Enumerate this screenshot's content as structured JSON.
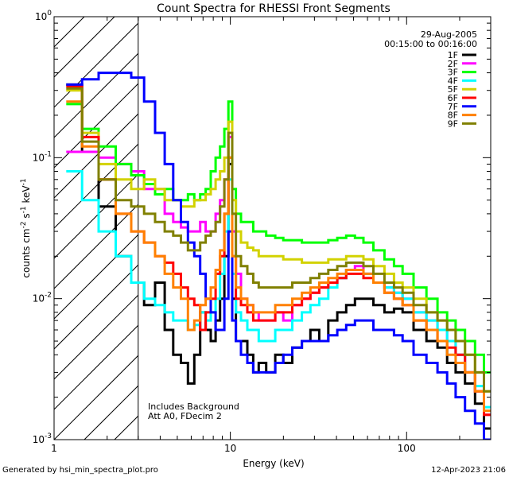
{
  "chart_data": {
    "type": "line",
    "title": "Count Spectra for RHESSI Front Segments",
    "xlabel": "Energy (keV)",
    "ylabel": {
      "base": "counts cm",
      "exp1": "-2",
      "mid1": " s",
      "exp2": "-1",
      "mid2": " keV",
      "exp3": "-1"
    },
    "xscale": "log",
    "yscale": "log",
    "xlim": [
      1,
      300
    ],
    "ylim": [
      0.001,
      1
    ],
    "x_ticks": [
      {
        "v": 1,
        "label": "1"
      },
      {
        "v": 10,
        "label": "10"
      },
      {
        "v": 100,
        "label": "100"
      }
    ],
    "y_ticks": [
      {
        "v": 1,
        "base": "10",
        "exp": "0"
      },
      {
        "v": 0.1,
        "base": "10",
        "exp": "-1"
      },
      {
        "v": 0.01,
        "base": "10",
        "exp": "-2"
      },
      {
        "v": 0.001,
        "base": "10",
        "exp": "-3"
      }
    ],
    "shaded_region": {
      "x_from": 1,
      "x_to": 3,
      "pattern": "diagonal-hatch"
    },
    "annotations": {
      "date": "29-Aug-2005",
      "time_range": "00:15:00 to 00:16:00",
      "background_note": "Includes Background",
      "attenuator_note": "Att A0, FDecim 2"
    },
    "legend_position": "top-right",
    "footer": {
      "left": "Generated by hsi_min_spectra_plot.pro",
      "right": "12-Apr-2023 21:06"
    },
    "series": [
      {
        "name": "1F",
        "color": "#000000",
        "x": [
          1.3,
          1.6,
          2.0,
          2.5,
          3.0,
          3.5,
          4.0,
          4.5,
          5.0,
          5.5,
          6.0,
          6.5,
          7.0,
          7.5,
          8.0,
          8.5,
          9.0,
          9.5,
          10.0,
          10.5,
          11.0,
          12,
          13,
          14,
          15,
          17,
          19,
          21,
          24,
          27,
          30,
          34,
          38,
          43,
          48,
          54,
          60,
          70,
          80,
          90,
          100,
          120,
          140,
          160,
          180,
          200,
          230,
          260,
          290
        ],
        "values": [
          0.33,
          0.11,
          0.045,
          0.02,
          0.013,
          0.009,
          0.013,
          0.006,
          0.004,
          0.0035,
          0.0025,
          0.004,
          0.008,
          0.006,
          0.005,
          0.007,
          0.01,
          0.02,
          0.09,
          0.01,
          0.005,
          0.005,
          0.004,
          0.003,
          0.0035,
          0.003,
          0.004,
          0.0035,
          0.0045,
          0.005,
          0.006,
          0.005,
          0.007,
          0.008,
          0.009,
          0.01,
          0.01,
          0.009,
          0.008,
          0.0085,
          0.008,
          0.006,
          0.005,
          0.0045,
          0.0035,
          0.003,
          0.0025,
          0.0018,
          0.0012
        ]
      },
      {
        "name": "2F",
        "color": "#ff00ff",
        "x": [
          1.3,
          1.6,
          2.0,
          2.5,
          3.0,
          3.5,
          4.0,
          4.5,
          5.0,
          5.5,
          6.0,
          6.5,
          7.0,
          7.5,
          8.0,
          8.5,
          9.0,
          9.5,
          10.0,
          10.5,
          11.0,
          12,
          13,
          14,
          15,
          17,
          19,
          21,
          24,
          27,
          30,
          34,
          38,
          43,
          48,
          54,
          60,
          70,
          80,
          90,
          100,
          120,
          140,
          160,
          180,
          200,
          230,
          260,
          290
        ],
        "values": [
          0.11,
          0.11,
          0.1,
          0.09,
          0.08,
          0.06,
          0.06,
          0.04,
          0.035,
          0.032,
          0.03,
          0.03,
          0.035,
          0.03,
          0.03,
          0.04,
          0.05,
          0.07,
          0.14,
          0.03,
          0.015,
          0.01,
          0.009,
          0.008,
          0.007,
          0.007,
          0.008,
          0.007,
          0.009,
          0.01,
          0.011,
          0.012,
          0.013,
          0.014,
          0.016,
          0.017,
          0.015,
          0.013,
          0.012,
          0.011,
          0.01,
          0.008,
          0.007,
          0.006,
          0.005,
          0.004,
          0.003,
          0.0022,
          0.0015
        ]
      },
      {
        "name": "3F",
        "color": "#00ff00",
        "x": [
          1.3,
          1.6,
          2.0,
          2.5,
          3.0,
          3.5,
          4.0,
          4.5,
          5.0,
          5.5,
          6.0,
          6.5,
          7.0,
          7.5,
          8.0,
          8.5,
          9.0,
          9.5,
          10.0,
          10.5,
          11.0,
          12,
          13,
          14,
          15,
          17,
          19,
          21,
          24,
          27,
          30,
          34,
          38,
          43,
          48,
          54,
          60,
          70,
          80,
          90,
          100,
          120,
          140,
          160,
          180,
          200,
          230,
          260,
          290
        ],
        "values": [
          0.24,
          0.16,
          0.12,
          0.09,
          0.075,
          0.065,
          0.055,
          0.06,
          0.05,
          0.05,
          0.055,
          0.05,
          0.055,
          0.06,
          0.08,
          0.1,
          0.12,
          0.16,
          0.25,
          0.06,
          0.04,
          0.035,
          0.035,
          0.03,
          0.03,
          0.028,
          0.027,
          0.026,
          0.026,
          0.025,
          0.025,
          0.025,
          0.026,
          0.027,
          0.028,
          0.027,
          0.025,
          0.022,
          0.019,
          0.017,
          0.015,
          0.012,
          0.01,
          0.008,
          0.007,
          0.006,
          0.005,
          0.004,
          0.003
        ]
      },
      {
        "name": "4F",
        "color": "#00ffff",
        "x": [
          1.3,
          1.6,
          2.0,
          2.5,
          3.0,
          3.5,
          4.0,
          4.5,
          5.0,
          5.5,
          6.0,
          6.5,
          7.0,
          7.5,
          8.0,
          8.5,
          9.0,
          9.5,
          10.0,
          10.5,
          11.0,
          12,
          13,
          14,
          15,
          17,
          19,
          21,
          24,
          27,
          30,
          34,
          38,
          43,
          48,
          54,
          60,
          70,
          80,
          90,
          100,
          120,
          140,
          160,
          180,
          200,
          230,
          260,
          290
        ],
        "values": [
          0.08,
          0.05,
          0.03,
          0.02,
          0.013,
          0.01,
          0.009,
          0.008,
          0.007,
          0.007,
          0.006,
          0.0065,
          0.008,
          0.007,
          0.008,
          0.01,
          0.015,
          0.03,
          0.07,
          0.015,
          0.008,
          0.007,
          0.006,
          0.006,
          0.005,
          0.005,
          0.006,
          0.006,
          0.007,
          0.008,
          0.009,
          0.01,
          0.012,
          0.014,
          0.016,
          0.016,
          0.015,
          0.013,
          0.012,
          0.011,
          0.01,
          0.008,
          0.007,
          0.006,
          0.005,
          0.004,
          0.003,
          0.0024,
          0.0017
        ]
      },
      {
        "name": "5F",
        "color": "#d2d200",
        "x": [
          1.3,
          1.6,
          2.0,
          2.5,
          3.0,
          3.5,
          4.0,
          4.5,
          5.0,
          5.5,
          6.0,
          6.5,
          7.0,
          7.5,
          8.0,
          8.5,
          9.0,
          9.5,
          10.0,
          10.5,
          11.0,
          12,
          13,
          14,
          15,
          17,
          19,
          21,
          24,
          27,
          30,
          34,
          38,
          43,
          48,
          54,
          60,
          70,
          80,
          90,
          100,
          120,
          140,
          160,
          180,
          200,
          230,
          260,
          290
        ],
        "values": [
          0.3,
          0.15,
          0.09,
          0.07,
          0.06,
          0.07,
          0.06,
          0.05,
          0.05,
          0.045,
          0.045,
          0.05,
          0.05,
          0.055,
          0.06,
          0.07,
          0.08,
          0.1,
          0.18,
          0.05,
          0.03,
          0.025,
          0.023,
          0.022,
          0.02,
          0.02,
          0.02,
          0.019,
          0.019,
          0.018,
          0.018,
          0.018,
          0.019,
          0.019,
          0.02,
          0.02,
          0.019,
          0.017,
          0.015,
          0.013,
          0.012,
          0.01,
          0.008,
          0.007,
          0.006,
          0.005,
          0.004,
          0.003,
          0.0022
        ]
      },
      {
        "name": "6F",
        "color": "#ff0000",
        "x": [
          1.3,
          1.6,
          2.0,
          2.5,
          3.0,
          3.5,
          4.0,
          4.5,
          5.0,
          5.5,
          6.0,
          6.5,
          7.0,
          7.5,
          8.0,
          8.5,
          9.0,
          9.5,
          10.0,
          10.5,
          11.0,
          12,
          13,
          14,
          15,
          17,
          19,
          21,
          24,
          27,
          30,
          34,
          38,
          43,
          48,
          54,
          60,
          70,
          80,
          90,
          100,
          120,
          140,
          160,
          180,
          200,
          230,
          260,
          290
        ],
        "values": [
          0.32,
          0.14,
          0.07,
          0.04,
          0.03,
          0.025,
          0.02,
          0.018,
          0.015,
          0.012,
          0.01,
          0.009,
          0.006,
          0.008,
          0.01,
          0.015,
          0.02,
          0.04,
          0.1,
          0.02,
          0.01,
          0.009,
          0.008,
          0.007,
          0.007,
          0.007,
          0.008,
          0.008,
          0.009,
          0.01,
          0.011,
          0.012,
          0.013,
          0.014,
          0.015,
          0.015,
          0.014,
          0.013,
          0.011,
          0.01,
          0.009,
          0.007,
          0.006,
          0.005,
          0.0045,
          0.004,
          0.003,
          0.0022,
          0.0015
        ]
      },
      {
        "name": "7F",
        "color": "#0000ff",
        "x": [
          1.3,
          1.6,
          2.0,
          2.5,
          3.0,
          3.5,
          4.0,
          4.5,
          5.0,
          5.5,
          6.0,
          6.5,
          7.0,
          7.5,
          8.0,
          8.5,
          9.0,
          9.5,
          10.0,
          10.5,
          11.0,
          12,
          13,
          14,
          15,
          17,
          19,
          21,
          24,
          27,
          30,
          34,
          38,
          43,
          48,
          54,
          60,
          70,
          80,
          90,
          100,
          120,
          140,
          160,
          180,
          200,
          230,
          260,
          290
        ],
        "values": [
          0.33,
          0.36,
          0.4,
          0.4,
          0.37,
          0.25,
          0.15,
          0.09,
          0.05,
          0.035,
          0.025,
          0.02,
          0.015,
          0.01,
          0.008,
          0.006,
          0.006,
          0.01,
          0.03,
          0.007,
          0.005,
          0.004,
          0.0035,
          0.003,
          0.003,
          0.003,
          0.0035,
          0.004,
          0.0045,
          0.005,
          0.005,
          0.005,
          0.0055,
          0.006,
          0.0065,
          0.007,
          0.007,
          0.006,
          0.006,
          0.0055,
          0.005,
          0.004,
          0.0035,
          0.003,
          0.0025,
          0.002,
          0.0016,
          0.0013,
          0.001
        ]
      },
      {
        "name": "8F",
        "color": "#ff8000",
        "x": [
          1.3,
          1.6,
          2.0,
          2.5,
          3.0,
          3.5,
          4.0,
          4.5,
          5.0,
          5.5,
          6.0,
          6.5,
          7.0,
          7.5,
          8.0,
          8.5,
          9.0,
          9.5,
          10.0,
          10.5,
          11.0,
          12,
          13,
          14,
          15,
          17,
          19,
          21,
          24,
          27,
          30,
          34,
          38,
          43,
          48,
          54,
          60,
          70,
          80,
          90,
          100,
          120,
          140,
          160,
          180,
          200,
          230,
          260,
          290
        ],
        "values": [
          0.25,
          0.12,
          0.07,
          0.04,
          0.03,
          0.025,
          0.02,
          0.015,
          0.012,
          0.01,
          0.006,
          0.007,
          0.009,
          0.01,
          0.012,
          0.016,
          0.022,
          0.04,
          0.1,
          0.02,
          0.012,
          0.01,
          0.009,
          0.008,
          0.008,
          0.008,
          0.009,
          0.009,
          0.01,
          0.011,
          0.012,
          0.013,
          0.014,
          0.015,
          0.016,
          0.016,
          0.015,
          0.013,
          0.011,
          0.01,
          0.009,
          0.007,
          0.006,
          0.005,
          0.004,
          0.0035,
          0.003,
          0.0022,
          0.0016
        ]
      },
      {
        "name": "9F",
        "color": "#808000",
        "x": [
          1.3,
          1.6,
          2.0,
          2.5,
          3.0,
          3.5,
          4.0,
          4.5,
          5.0,
          5.5,
          6.0,
          6.5,
          7.0,
          7.5,
          8.0,
          8.5,
          9.0,
          9.5,
          10.0,
          10.5,
          11.0,
          12,
          13,
          14,
          15,
          17,
          19,
          21,
          24,
          27,
          30,
          34,
          38,
          43,
          48,
          54,
          60,
          70,
          80,
          90,
          100,
          120,
          140,
          160,
          180,
          200,
          230,
          260,
          290
        ],
        "values": [
          0.31,
          0.13,
          0.07,
          0.05,
          0.045,
          0.04,
          0.035,
          0.03,
          0.028,
          0.025,
          0.022,
          0.022,
          0.025,
          0.028,
          0.03,
          0.035,
          0.045,
          0.07,
          0.15,
          0.04,
          0.02,
          0.017,
          0.015,
          0.013,
          0.012,
          0.012,
          0.012,
          0.012,
          0.013,
          0.013,
          0.014,
          0.015,
          0.016,
          0.017,
          0.018,
          0.018,
          0.017,
          0.015,
          0.013,
          0.012,
          0.011,
          0.009,
          0.008,
          0.007,
          0.006,
          0.005,
          0.004,
          0.003,
          0.0022
        ]
      }
    ]
  }
}
